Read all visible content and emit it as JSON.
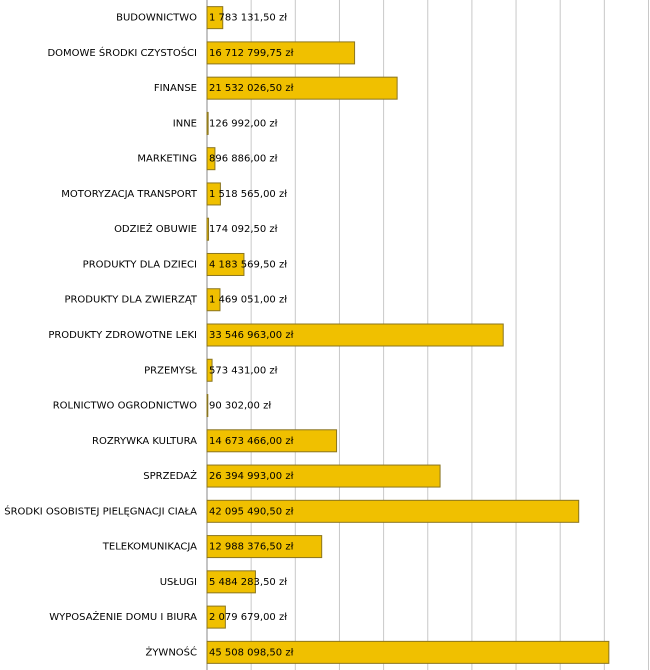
{
  "chart_data": {
    "type": "hbar",
    "categories": [
      "BUDOWNICTWO",
      "DOMOWE ŚRODKI CZYSTOŚCI",
      "FINANSE",
      "INNE",
      "MARKETING",
      "MOTORYZACJA TRANSPORT",
      "ODZIEŻ OBUWIE",
      "PRODUKTY DLA DZIECI",
      "PRODUKTY DLA ZWIERZĄT",
      "PRODUKTY ZDROWOTNE LEKI",
      "PRZEMYSŁ",
      "ROLNICTWO OGRODNICTWO",
      "ROZRYWKA KULTURA",
      "SPRZEDAŻ",
      "ŚRODKI OSOBISTEJ PIELĘGNACJI CIAŁA",
      "TELEKOMUNIKACJA",
      "USŁUGI",
      "WYPOSAŻENIE DOMU I BIURA",
      "ŻYWNOŚĆ"
    ],
    "values": [
      1783131.5,
      16712799.75,
      21532026.5,
      126992,
      896886,
      1518565,
      174092.5,
      4183569.5,
      1469051,
      33546963,
      573431,
      90302,
      14673466,
      26394993,
      42095490.5,
      12988376.5,
      5484283.5,
      2079679,
      45508098.5
    ],
    "value_labels": [
      "1 783 131,50 zł",
      "16 712 799,75 zł",
      "21 532 026,50 zł",
      "126 992,00 zł",
      "896 886,00 zł",
      "1 518 565,00 zł",
      "174 092,50 zł",
      "4 183 569,50 zł",
      "1 469 051,00 zł",
      "33 546 963,00 zł",
      "573 431,00 zł",
      "90 302,00 zł",
      "14 673 466,00 zł",
      "26 394 993,00 zł",
      "42 095 490,50 zł",
      "12 988 376,50 zł",
      "5 484 283,50 zł",
      "2 079 679,00 zł",
      "45 508 098,50 zł"
    ],
    "color": "#f0c000",
    "xlim": [
      0,
      50000000
    ],
    "xticks": [
      0,
      5000000,
      10000000,
      15000000,
      20000000,
      25000000,
      30000000,
      35000000,
      40000000,
      45000000,
      50000000
    ],
    "grid": true
  }
}
